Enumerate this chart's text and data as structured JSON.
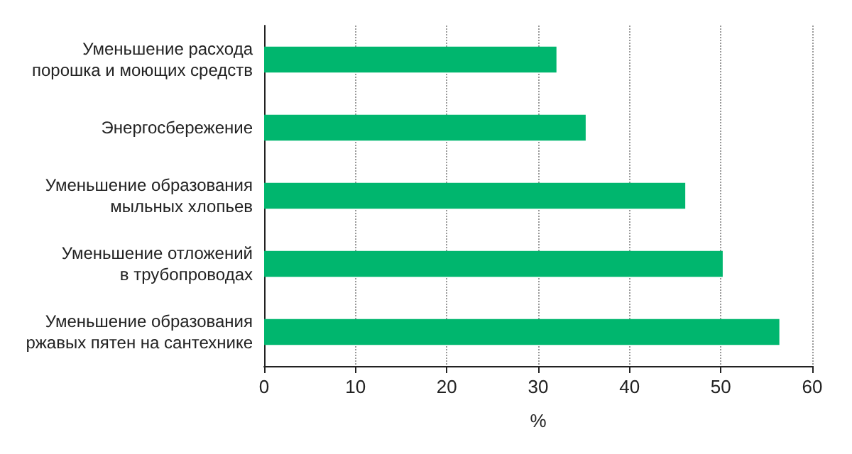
{
  "chart_data": {
    "type": "bar",
    "orientation": "horizontal",
    "xlabel": "%",
    "categories": [
      "Уменьшение расхода\nпорошка и моющих средств",
      "Энергосбережение",
      "Уменьшение образования\nмыльных хлопьев",
      "Уменьшение отложений\nв трубопроводах",
      "Уменьшение образования\nржавых пятен на сантехнике"
    ],
    "values": [
      32,
      35.2,
      46.1,
      50.2,
      56.4
    ],
    "color": "#00b66e",
    "xlim": [
      0,
      60
    ],
    "xticks": [
      0,
      10,
      20,
      30,
      40,
      50,
      60
    ],
    "grid": "x",
    "line_style": "dotted"
  }
}
